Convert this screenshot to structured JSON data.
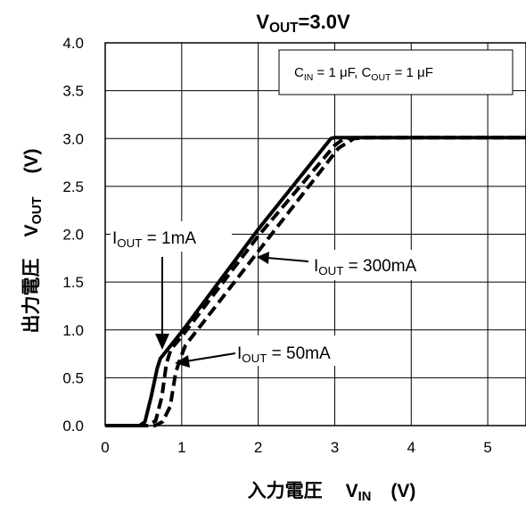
{
  "chart_data": {
    "type": "line",
    "title": {
      "main": "V",
      "sub": "OUT",
      "tail": "=3.0V"
    },
    "condition": {
      "c1": "C",
      "c1_sub": "IN",
      "c1_val": " = 1 μF, ",
      "c2": "C",
      "c2_sub": "OUT",
      "c2_val": " = 1 μF"
    },
    "xlabel": {
      "jp": "入力電圧",
      "sym": "V",
      "sym_sub": "IN",
      "unit": "(V)"
    },
    "ylabel": {
      "jp": "出力電圧",
      "sym": "V",
      "sym_sub": "OUT",
      "unit": "(V)"
    },
    "xlim": [
      0,
      5.5
    ],
    "ylim": [
      0,
      4.0
    ],
    "x_ticks": [
      "0",
      "1",
      "2",
      "3",
      "4",
      "5"
    ],
    "y_ticks": [
      "0.0",
      "0.5",
      "1.0",
      "1.5",
      "2.0",
      "2.5",
      "3.0",
      "3.5",
      "4.0"
    ],
    "grid": true,
    "series": [
      {
        "name": "IOUT = 1mA",
        "style": "solid",
        "width": 4,
        "x": [
          0,
          0.45,
          0.52,
          0.6,
          0.68,
          0.72,
          1.0,
          2.0,
          2.95,
          3.0,
          3.2,
          5.5
        ],
        "y": [
          0.0,
          0.0,
          0.04,
          0.3,
          0.6,
          0.7,
          0.98,
          2.05,
          3.0,
          3.01,
          3.01,
          3.01
        ]
      },
      {
        "name": "IOUT = 50mA",
        "style": "dashed",
        "width": 4,
        "x": [
          0,
          0.55,
          0.66,
          0.74,
          0.8,
          0.86,
          1.0,
          2.0,
          3.0,
          3.12,
          3.3,
          5.5
        ],
        "y": [
          0.0,
          0.0,
          0.05,
          0.3,
          0.65,
          0.8,
          0.93,
          1.98,
          2.93,
          3.0,
          3.01,
          3.01
        ]
      },
      {
        "name": "IOUT = 300mA",
        "style": "dashed",
        "width": 4,
        "x": [
          0,
          0.65,
          0.75,
          0.85,
          0.92,
          0.98,
          1.05,
          2.0,
          3.05,
          3.25,
          3.45,
          5.5
        ],
        "y": [
          0.0,
          0.0,
          0.04,
          0.2,
          0.55,
          0.7,
          0.84,
          1.82,
          2.9,
          3.0,
          3.01,
          3.01
        ]
      }
    ],
    "annotations": [
      {
        "pre": "I",
        "sub": "OUT",
        "post": " = 1mA",
        "series": 0
      },
      {
        "pre": "I",
        "sub": "OUT",
        "post": " = 50mA",
        "series": 1
      },
      {
        "pre": "I",
        "sub": "OUT",
        "post": " = 300mA",
        "series": 2
      }
    ]
  }
}
